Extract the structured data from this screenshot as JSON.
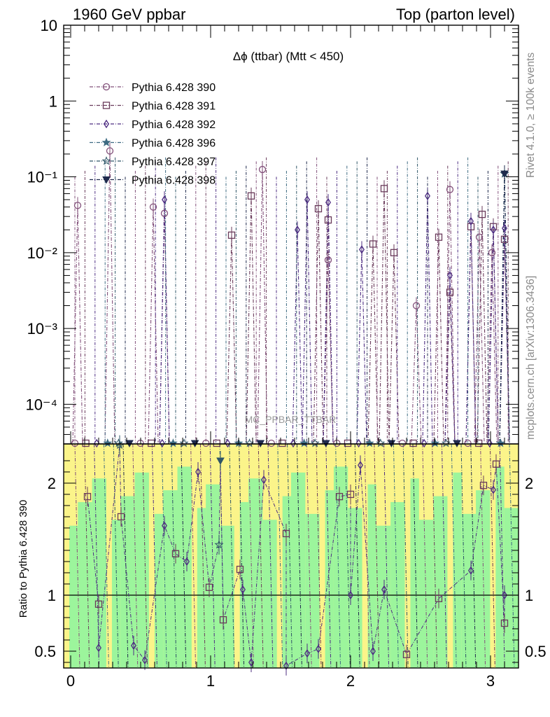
{
  "chart_data": {
    "type": "scatter",
    "header_left": "1960 GeV ppbar",
    "header_right": "Top (parton level)",
    "title": "Δϕ (ttbar) (Mtt < 450)",
    "watermark": "MC_PPBAR_TTBAR",
    "side_text_top": "Rivet 4.1.0, ≥ 100k events",
    "side_text_bottom": "mcplots.cern.ch [arXiv:1306.3436]",
    "ratio_ylabel": "Ratio to Pythia 6.428 390",
    "xlim": [
      -0.05,
      3.2
    ],
    "ylim_main": [
      3e-05,
      10
    ],
    "ylim_ratio": [
      0.35,
      2.35
    ],
    "y_ticks_main": [
      "10",
      "1",
      "10⁻¹",
      "10⁻²",
      "10⁻³",
      "10⁻⁴"
    ],
    "y_ticks_ratio": [
      "2",
      "1",
      "0.5"
    ],
    "x_ticks": [
      "0",
      "1",
      "2",
      "3"
    ],
    "ratio_band_levels": [
      1.62,
      2.2
    ],
    "colors": {
      "green": "#9cf59c",
      "yellow": "#fbf48a"
    },
    "legend": [
      {
        "label": "Pythia 6.428 390",
        "marker": "circle",
        "color": "#82507a"
      },
      {
        "label": "Pythia 6.428 391",
        "marker": "square",
        "color": "#6a3b5b"
      },
      {
        "label": "Pythia 6.428 392",
        "marker": "diamond",
        "color": "#4d2d82"
      },
      {
        "label": "Pythia 6.428 396",
        "marker": "star",
        "color": "#3e6b82"
      },
      {
        "label": "Pythia 6.428 397",
        "marker": "star-open",
        "color": "#2e5567"
      },
      {
        "label": "Pythia 6.428 398",
        "marker": "triangle-down",
        "color": "#1f2a4d"
      }
    ],
    "series": [
      {
        "name": "Pythia 6.428 390",
        "points": [
          [
            0.05,
            0.042
          ],
          [
            0.28,
            0.22
          ],
          [
            0.59,
            0.04
          ],
          [
            0.67,
            0.033
          ],
          [
            1.37,
            0.125
          ],
          [
            1.84,
            0.008
          ],
          [
            2.47,
            0.002
          ],
          [
            2.71,
            0.068
          ],
          [
            2.92,
            0.016
          ],
          [
            3.01,
            0.01
          ]
        ]
      },
      {
        "name": "Pythia 6.428 391",
        "points": [
          [
            1.15,
            0.017
          ],
          [
            1.29,
            0.056
          ],
          [
            1.77,
            0.038
          ],
          [
            1.84,
            0.027
          ],
          [
            2.16,
            0.013
          ],
          [
            2.24,
            0.07
          ],
          [
            2.31,
            0.01
          ],
          [
            2.63,
            0.016
          ],
          [
            2.71,
            0.003
          ],
          [
            2.86,
            0.022
          ],
          [
            2.94,
            0.032
          ],
          [
            3.02,
            0.022
          ],
          [
            3.1,
            0.015
          ]
        ]
      },
      {
        "name": "Pythia 6.428 392",
        "points": [
          [
            0.67,
            0.05
          ],
          [
            1.62,
            0.02
          ],
          [
            1.69,
            0.05
          ],
          [
            1.84,
            0.046
          ],
          [
            2.08,
            0.011
          ],
          [
            2.55,
            0.056
          ],
          [
            2.71,
            0.005
          ],
          [
            2.86,
            0.026
          ],
          [
            3.02,
            0.02
          ],
          [
            3.1,
            0.021
          ]
        ]
      },
      {
        "name": "Pythia 6.428 396",
        "points": [
          [
            3.1,
            0.11
          ]
        ]
      },
      {
        "name": "Pythia 6.428 397",
        "points": [
          [
            3.1,
            0.11
          ]
        ]
      },
      {
        "name": "Pythia 6.428 398",
        "points": [
          [
            3.1,
            0.11
          ]
        ]
      }
    ],
    "ratio_points": [
      [
        0.12,
        1.88
      ],
      [
        0.2,
        0.92
      ],
      [
        0.36,
        1.7
      ],
      [
        0.75,
        1.37
      ],
      [
        0.99,
        1.07
      ],
      [
        1.09,
        0.78
      ],
      [
        1.21,
        1.23
      ],
      [
        1.54,
        1.55
      ],
      [
        1.92,
        1.88
      ],
      [
        2.0,
        1.9
      ],
      [
        2.63,
        0.97
      ],
      [
        2.4,
        0.47
      ],
      [
        2.95,
        1.98
      ],
      [
        3.04,
        2.17
      ],
      [
        3.1,
        0.75
      ],
      [
        0.2,
        0.53
      ],
      [
        0.45,
        0.55
      ],
      [
        0.53,
        0.42
      ],
      [
        0.67,
        1.62
      ],
      [
        0.83,
        1.3
      ],
      [
        0.91,
        2.1
      ],
      [
        1.23,
        1.05
      ],
      [
        1.29,
        0.4
      ],
      [
        1.38,
        2.03
      ],
      [
        1.54,
        0.37
      ],
      [
        1.69,
        0.48
      ],
      [
        1.77,
        0.52
      ],
      [
        2.0,
        1.0
      ],
      [
        2.07,
        2.16
      ],
      [
        2.16,
        0.5
      ],
      [
        2.24,
        1.05
      ],
      [
        2.86,
        1.22
      ],
      [
        3.02,
        1.94
      ],
      [
        3.1,
        1.0
      ],
      [
        1.06,
        1.45
      ],
      [
        1.07,
        2.2
      ],
      [
        0.35,
        2.34
      ]
    ]
  }
}
